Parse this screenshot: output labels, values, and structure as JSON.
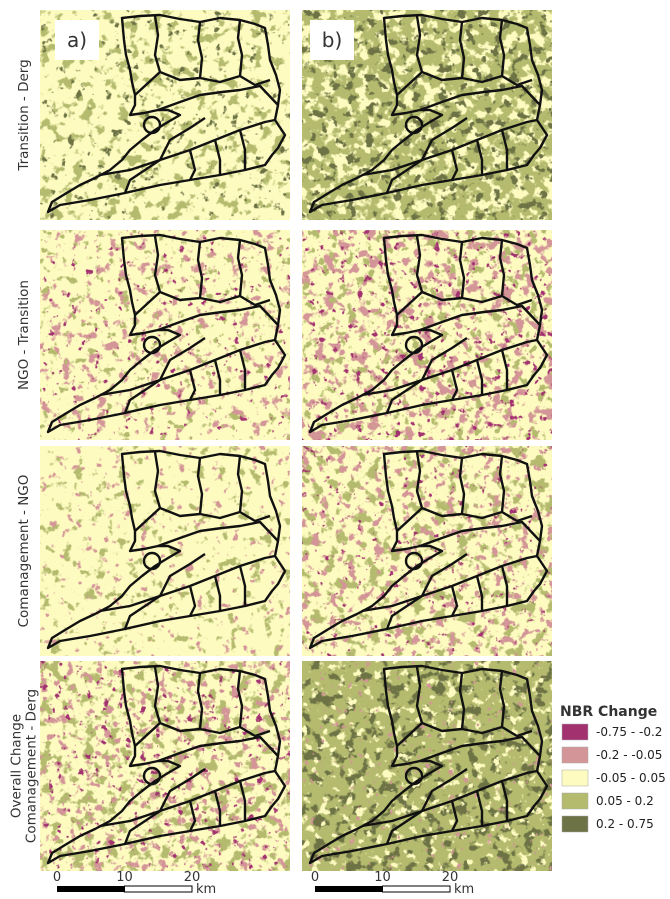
{
  "panels": [
    {
      "label": "a)"
    },
    {
      "label": "b)"
    }
  ],
  "rows": [
    {
      "lines": [
        "Transition - Derg"
      ]
    },
    {
      "lines": [
        "NGO - Transition"
      ]
    },
    {
      "lines": [
        "Comanagement - NGO"
      ]
    },
    {
      "lines": [
        "Overall Change",
        "Comanagement - Derg"
      ]
    }
  ],
  "legend": {
    "title": "NBR Change",
    "items": [
      {
        "label": "-0.75 - -0.2",
        "color": "#a2316f"
      },
      {
        "label": "-0.2 - -0.05",
        "color": "#d39597"
      },
      {
        "label": "-0.05 - 0.05",
        "color": "#fdfbbf"
      },
      {
        "label": "0.05 - 0.2",
        "color": "#b4bb6e"
      },
      {
        "label": "0.2 - 0.75",
        "color": "#6d7344"
      }
    ]
  },
  "scale_bars": [
    {
      "ticks": [
        "0",
        "10",
        "20"
      ],
      "unit": "km"
    },
    {
      "ticks": [
        "0",
        "10",
        "20"
      ],
      "unit": "km"
    }
  ]
}
